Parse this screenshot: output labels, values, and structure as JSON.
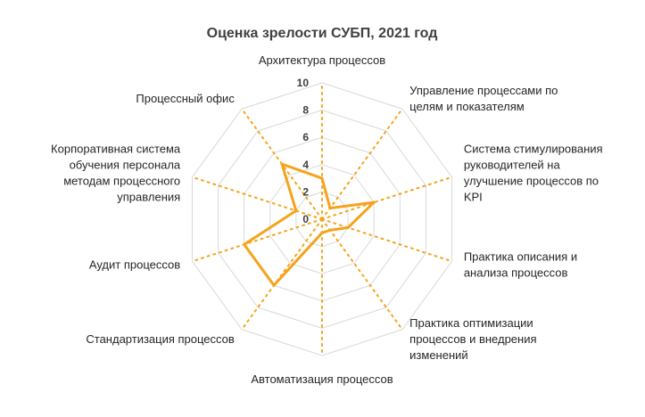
{
  "chart_data": {
    "type": "radar",
    "title": "Оценка зрелости СУБП, 2021 год",
    "categories": [
      "Архитектура процессов",
      "Управление процессами по целям и показателям",
      "Система стимулирования руководителей на улучшение процессов по KPI",
      "Практика описания и анализа процессов",
      "Практика оптимизации процессов и внедрения изменений",
      "Автоматизация процессов",
      "Стандартизация процессов",
      "Аудит процессов",
      "Корпоративная система обучения персонала методам процессного управления",
      "Процессный офис"
    ],
    "category_lines": [
      [
        "Архитектура процессов"
      ],
      [
        "Управление процессами по",
        "целям и показателям"
      ],
      [
        "Система стимулирования",
        "руководителей на",
        "улучшение процессов по",
        "KPI"
      ],
      [
        "Практика описания и",
        "анализа процессов"
      ],
      [
        "Практика оптимизации",
        "процессов и внедрения",
        "изменений"
      ],
      [
        "Автоматизация процессов"
      ],
      [
        "Стандартизация процессов"
      ],
      [
        "Аудит процессов"
      ],
      [
        "Корпоративная система",
        "обучения персонала",
        "методам процессного",
        "управления"
      ],
      [
        "Процессный офис"
      ]
    ],
    "series": [
      {
        "values": [
          3,
          1,
          4,
          2,
          1,
          1,
          6,
          6,
          2,
          5
        ],
        "color": "#F5A31A"
      }
    ],
    "rlim": [
      0,
      10
    ],
    "ticks": [
      0,
      2,
      4,
      6,
      8,
      10
    ],
    "grid_color": "#D9D9D9",
    "spoke_color": "#F5A31A",
    "spoke_style": "dotted"
  }
}
